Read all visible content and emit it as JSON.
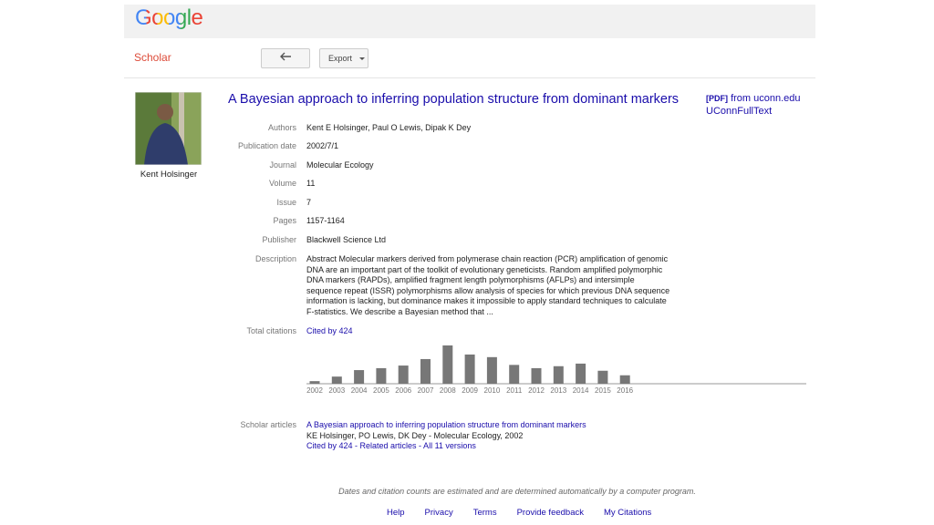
{
  "header": {
    "logo": "Google",
    "section": "Scholar",
    "export_button": "Export"
  },
  "author": {
    "name": "Kent Holsinger"
  },
  "article": {
    "title": "A Bayesian approach to inferring population structure from dominant markers",
    "pdf_tag": "[PDF]",
    "pdf_source": "from uconn.edu",
    "fulltext_link": "UConnFullText",
    "fields": [
      {
        "label": "Authors",
        "value": "Kent E Holsinger, Paul O Lewis, Dipak K Dey"
      },
      {
        "label": "Publication date",
        "value": "2002/7/1"
      },
      {
        "label": "Journal",
        "value": "Molecular Ecology"
      },
      {
        "label": "Volume",
        "value": "11"
      },
      {
        "label": "Issue",
        "value": "7"
      },
      {
        "label": "Pages",
        "value": "1157-1164"
      },
      {
        "label": "Publisher",
        "value": "Blackwell Science Ltd"
      },
      {
        "label": "Description",
        "value": "Abstract Molecular markers derived from polymerase chain reaction (PCR) amplification of genomic DNA are an important part of the toolkit of evolutionary geneticists. Random amplified polymorphic DNA markers (RAPDs), amplified fragment length polymorphisms (AFLPs) and intersimple sequence repeat (ISSR) polymorphisms allow analysis of species for which previous DNA sequence information is lacking, but dominance makes it impossible to apply standard techniques to calculate F-statistics. We describe a Bayesian method that ..."
      },
      {
        "label": "Total citations",
        "value": "Cited by 424"
      }
    ]
  },
  "chart_data": {
    "type": "bar",
    "categories": [
      "2002",
      "2003",
      "2004",
      "2005",
      "2006",
      "2007",
      "2008",
      "2009",
      "2010",
      "2011",
      "2012",
      "2013",
      "2014",
      "2015",
      "2016"
    ],
    "values": [
      4,
      11,
      21,
      24,
      28,
      38,
      59,
      45,
      41,
      29,
      24,
      27,
      31,
      20,
      13
    ],
    "color": "#777777"
  },
  "scholar_articles": {
    "label": "Scholar articles",
    "title": "A Bayesian approach to inferring population structure from dominant markers",
    "byline": "KE Holsinger, PO Lewis, DK Dey - Molecular Ecology, 2002",
    "links": "Cited by 424 - Related articles - All 11 versions"
  },
  "footer": {
    "note": "Dates and citation counts are estimated and are determined automatically by a computer program.",
    "links": [
      "Help",
      "Privacy",
      "Terms",
      "Provide feedback",
      "My Citations"
    ]
  }
}
